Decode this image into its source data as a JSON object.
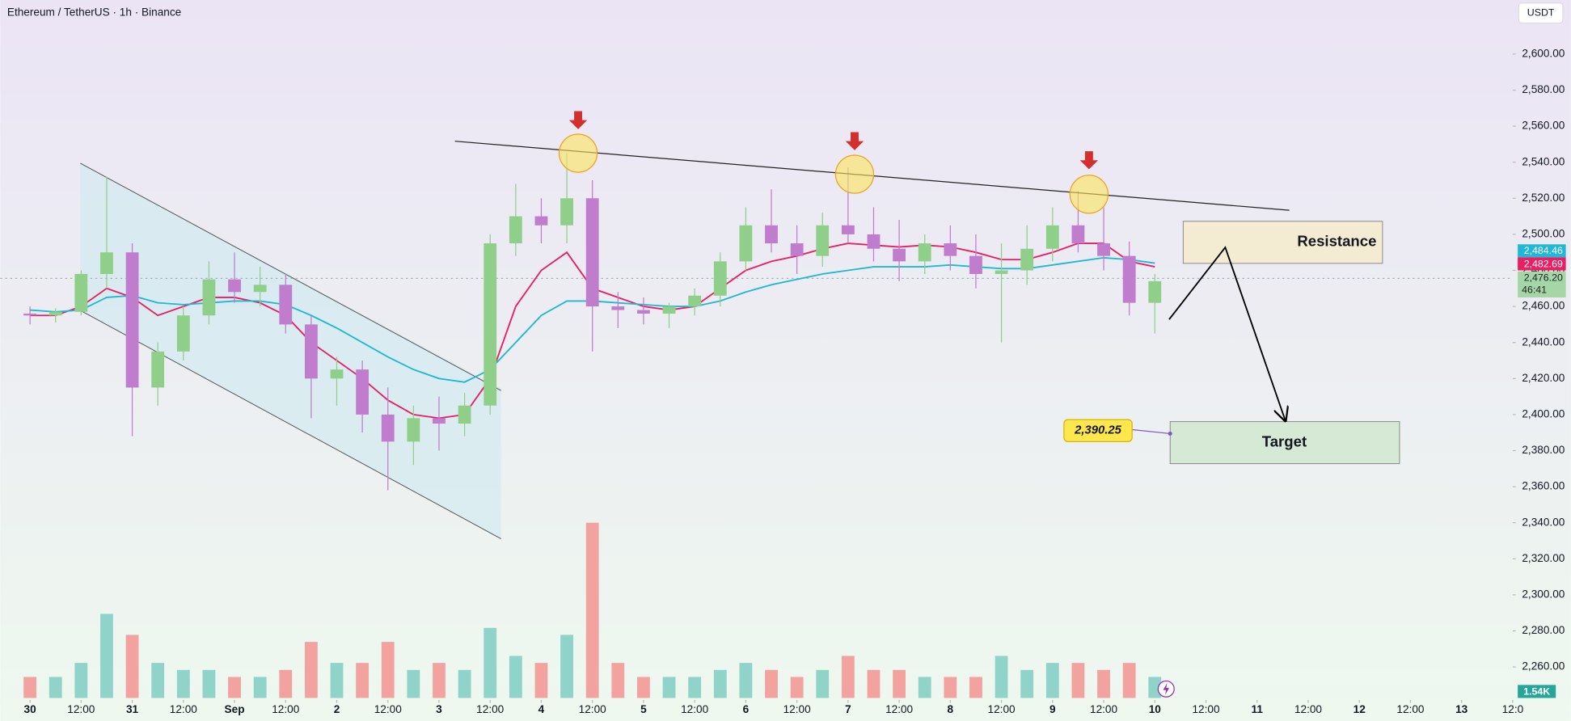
{
  "chart_data": {
    "type": "candlestick",
    "title": "Ethereum / TetherUS · 1h · Binance",
    "currency": "USDT",
    "x": [
      0,
      6,
      12,
      18,
      24,
      30,
      36,
      42,
      48,
      54,
      60,
      66,
      72,
      78,
      84,
      90,
      96,
      102,
      108,
      114,
      120,
      126,
      132,
      138,
      144,
      150,
      156,
      162,
      168,
      174,
      180,
      186,
      192,
      198,
      204,
      210,
      216,
      222,
      228,
      234,
      240,
      246,
      252,
      258,
      264
    ],
    "ohlc": [
      [
        2456,
        2460,
        2450,
        2455
      ],
      [
        2455,
        2459,
        2451,
        2457
      ],
      [
        2457,
        2480,
        2455,
        2478
      ],
      [
        2478,
        2532,
        2470,
        2490
      ],
      [
        2490,
        2495,
        2388,
        2415
      ],
      [
        2415,
        2440,
        2405,
        2435
      ],
      [
        2435,
        2460,
        2430,
        2455
      ],
      [
        2455,
        2485,
        2450,
        2475
      ],
      [
        2475,
        2490,
        2462,
        2468
      ],
      [
        2468,
        2482,
        2460,
        2472
      ],
      [
        2472,
        2478,
        2445,
        2450
      ],
      [
        2450,
        2455,
        2398,
        2420
      ],
      [
        2420,
        2432,
        2405,
        2425
      ],
      [
        2425,
        2430,
        2390,
        2400
      ],
      [
        2400,
        2415,
        2358,
        2385
      ],
      [
        2385,
        2405,
        2372,
        2398
      ],
      [
        2398,
        2410,
        2380,
        2395
      ],
      [
        2395,
        2412,
        2388,
        2405
      ],
      [
        2405,
        2500,
        2400,
        2495
      ],
      [
        2495,
        2528,
        2488,
        2510
      ],
      [
        2510,
        2520,
        2495,
        2505
      ],
      [
        2505,
        2545,
        2495,
        2520
      ],
      [
        2520,
        2530,
        2435,
        2460
      ],
      [
        2460,
        2468,
        2448,
        2458
      ],
      [
        2458,
        2465,
        2450,
        2456
      ],
      [
        2456,
        2462,
        2448,
        2460
      ],
      [
        2460,
        2470,
        2455,
        2466
      ],
      [
        2466,
        2490,
        2460,
        2485
      ],
      [
        2485,
        2515,
        2480,
        2505
      ],
      [
        2505,
        2525,
        2490,
        2495
      ],
      [
        2495,
        2505,
        2478,
        2488
      ],
      [
        2488,
        2512,
        2482,
        2505
      ],
      [
        2505,
        2537,
        2495,
        2500
      ],
      [
        2500,
        2515,
        2485,
        2492
      ],
      [
        2492,
        2508,
        2474,
        2485
      ],
      [
        2485,
        2500,
        2478,
        2495
      ],
      [
        2495,
        2505,
        2480,
        2488
      ],
      [
        2488,
        2500,
        2470,
        2478
      ],
      [
        2478,
        2495,
        2440,
        2480
      ],
      [
        2480,
        2505,
        2472,
        2492
      ],
      [
        2492,
        2515,
        2485,
        2505
      ],
      [
        2505,
        2524,
        2490,
        2495
      ],
      [
        2495,
        2515,
        2480,
        2488
      ],
      [
        2488,
        2496,
        2455,
        2462
      ],
      [
        2462,
        2478,
        2445,
        2474
      ]
    ],
    "up_color": "#8fcf8a",
    "down_color": "#c07ccd",
    "volume": [
      3,
      3,
      5,
      12,
      9,
      5,
      4,
      4,
      3,
      3,
      4,
      8,
      5,
      5,
      8,
      4,
      5,
      4,
      10,
      6,
      5,
      9,
      25,
      5,
      3,
      3,
      3,
      4,
      5,
      4,
      3,
      4,
      6,
      4,
      4,
      3,
      3,
      3,
      6,
      4,
      5,
      5,
      4,
      5,
      3
    ],
    "volume_up_color": "#8fd3c9",
    "volume_down_color": "#f2a3a0",
    "series": [
      {
        "color": "#e91e63",
        "values": [
          2455,
          2455,
          2460,
          2470,
          2465,
          2455,
          2460,
          2465,
          2465,
          2462,
          2455,
          2440,
          2430,
          2420,
          2408,
          2400,
          2398,
          2400,
          2420,
          2460,
          2480,
          2490,
          2470,
          2465,
          2460,
          2458,
          2460,
          2470,
          2480,
          2485,
          2488,
          2492,
          2495,
          2494,
          2493,
          2494,
          2493,
          2490,
          2486,
          2486,
          2490,
          2495,
          2495,
          2485,
          2482
        ]
      },
      {
        "color": "#1fb8d6",
        "values": [
          2458,
          2457,
          2458,
          2465,
          2466,
          2462,
          2461,
          2462,
          2463,
          2463,
          2461,
          2455,
          2448,
          2440,
          2432,
          2425,
          2420,
          2418,
          2425,
          2440,
          2455,
          2463,
          2463,
          2462,
          2461,
          2460,
          2460,
          2463,
          2468,
          2472,
          2475,
          2478,
          2480,
          2482,
          2482,
          2482,
          2483,
          2482,
          2481,
          2481,
          2483,
          2485,
          2487,
          2486,
          2484
        ]
      }
    ],
    "xlim": [
      -7,
      348
    ],
    "ylim": [
      2230,
      2630
    ],
    "yticks": [
      {
        "value": 2600,
        "label": "2,600.00"
      },
      {
        "value": 2580,
        "label": "2,580.00"
      },
      {
        "value": 2560,
        "label": "2,560.00"
      },
      {
        "value": 2540,
        "label": "2,540.00"
      },
      {
        "value": 2520,
        "label": "2,520.00"
      },
      {
        "value": 2500,
        "label": "2,500.00"
      },
      {
        "value": 2480,
        "label": "2,480.00"
      },
      {
        "value": 2460,
        "label": "2,460.00"
      },
      {
        "value": 2440,
        "label": "2,440.00"
      },
      {
        "value": 2420,
        "label": "2,420.00"
      },
      {
        "value": 2400,
        "label": "2,400.00"
      },
      {
        "value": 2380,
        "label": "2,380.00"
      },
      {
        "value": 2360,
        "label": "2,360.00"
      },
      {
        "value": 2340,
        "label": "2,340.00"
      },
      {
        "value": 2320,
        "label": "2,320.00"
      },
      {
        "value": 2300,
        "label": "2,300.00"
      },
      {
        "value": 2280,
        "label": "2,280.00"
      },
      {
        "value": 2260,
        "label": "2,260.00"
      }
    ],
    "xticks": [
      {
        "value": 0,
        "label": "30"
      },
      {
        "value": 12,
        "label": "12:00"
      },
      {
        "value": 24,
        "label": "31"
      },
      {
        "value": 36,
        "label": "12:00"
      },
      {
        "value": 48,
        "label": "Sep"
      },
      {
        "value": 60,
        "label": "12:00"
      },
      {
        "value": 72,
        "label": "2"
      },
      {
        "value": 84,
        "label": "12:00"
      },
      {
        "value": 96,
        "label": "3"
      },
      {
        "value": 108,
        "label": "12:00"
      },
      {
        "value": 120,
        "label": "4"
      },
      {
        "value": 132,
        "label": "12:00"
      },
      {
        "value": 144,
        "label": "5"
      },
      {
        "value": 156,
        "label": "12:00"
      },
      {
        "value": 168,
        "label": "6"
      },
      {
        "value": 180,
        "label": "12:00"
      },
      {
        "value": 192,
        "label": "7"
      },
      {
        "value": 204,
        "label": "12:00"
      },
      {
        "value": 216,
        "label": "8"
      },
      {
        "value": 228,
        "label": "12:00"
      },
      {
        "value": 240,
        "label": "9"
      },
      {
        "value": 252,
        "label": "12:00"
      },
      {
        "value": 264,
        "label": "10"
      },
      {
        "value": 276,
        "label": "12:00"
      },
      {
        "value": 288,
        "label": "11"
      },
      {
        "value": 300,
        "label": "12:00"
      },
      {
        "value": 312,
        "label": "12"
      },
      {
        "value": 324,
        "label": "12:00"
      },
      {
        "value": 336,
        "label": "13"
      },
      {
        "value": 348,
        "label": "12:0"
      }
    ],
    "price_tags": [
      {
        "label": "2,484.46",
        "color": "#1fb8d6"
      },
      {
        "label": "2,482.69",
        "color": "#e91e63"
      },
      {
        "label": "2,476.20",
        "color": "#a5d6a7"
      }
    ],
    "countdown": "46:41",
    "volume_label": "1.54K",
    "annotations": {
      "resistance": "Resistance",
      "target": "Target",
      "target_price": "2,390.25"
    }
  }
}
